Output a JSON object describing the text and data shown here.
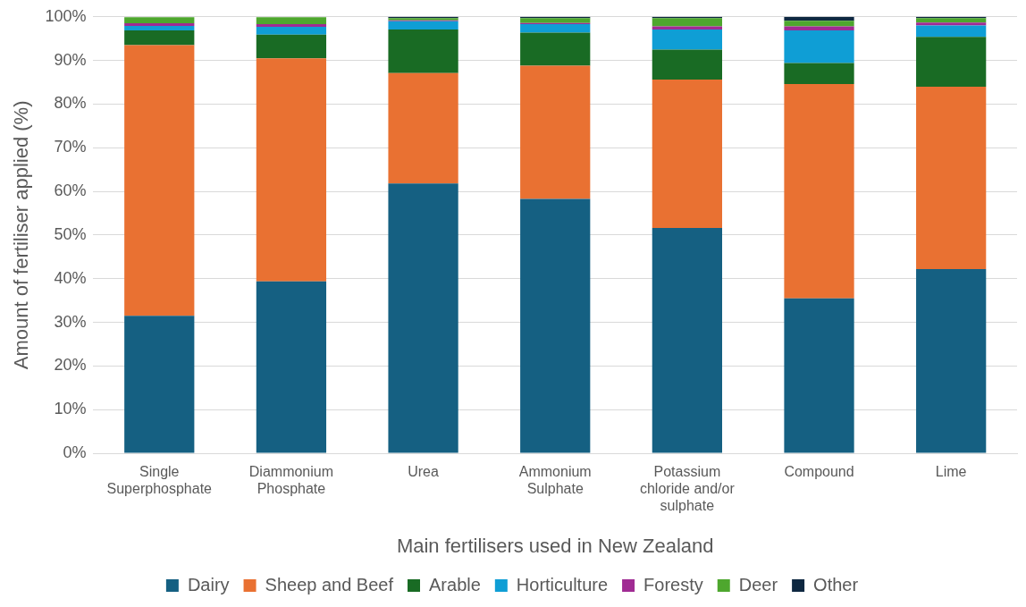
{
  "chart_data": {
    "type": "bar",
    "stacked": true,
    "xlabel": "Main fertilisers used in New Zealand",
    "ylabel": "Amount of fertiliser applied (%)",
    "categories": [
      "Single Superphosphate",
      "Diammonium Phosphate",
      "Urea",
      "Ammonium Sulphate",
      "Potassium chloride and/or sulphate",
      "Compound",
      "Lime"
    ],
    "series": [
      {
        "name": "Dairy",
        "color": "#156082",
        "values": [
          31.5,
          39.4,
          61.8,
          58.3,
          51.6,
          35.5,
          42.2
        ]
      },
      {
        "name": "Sheep and Beef",
        "color": "#e97132",
        "values": [
          62.0,
          51.1,
          25.3,
          30.5,
          34.0,
          49.1,
          41.8
        ]
      },
      {
        "name": "Arable",
        "color": "#196b24",
        "values": [
          3.4,
          5.4,
          10.0,
          7.6,
          6.9,
          4.8,
          11.4
        ]
      },
      {
        "name": "Horticulture",
        "color": "#0f9ed5",
        "values": [
          1.0,
          1.8,
          1.9,
          1.9,
          4.6,
          7.5,
          2.6
        ]
      },
      {
        "name": "Foresty",
        "color": "#a02b93",
        "values": [
          0.6,
          0.6,
          0.2,
          0.3,
          0.7,
          0.9,
          0.7
        ]
      },
      {
        "name": "Deer",
        "color": "#4ea72e",
        "values": [
          1.4,
          1.6,
          0.5,
          1.1,
          1.9,
          1.3,
          1.0
        ]
      },
      {
        "name": "Other",
        "color": "#0e2841",
        "values": [
          null,
          null,
          0.3,
          0.3,
          0.3,
          0.9,
          0.3
        ]
      }
    ],
    "ylim": [
      0,
      100
    ],
    "yticks": [
      {
        "value": 0,
        "label": "0%"
      },
      {
        "value": 10,
        "label": "10%"
      },
      {
        "value": 20,
        "label": "20%"
      },
      {
        "value": 30,
        "label": "30%"
      },
      {
        "value": 40,
        "label": "40%"
      },
      {
        "value": 50,
        "label": "50%"
      },
      {
        "value": 60,
        "label": "60%"
      },
      {
        "value": 70,
        "label": "70%"
      },
      {
        "value": 80,
        "label": "80%"
      },
      {
        "value": 90,
        "label": "90%"
      },
      {
        "value": 100,
        "label": "100%"
      }
    ],
    "grid": "y",
    "legend": "bottom"
  }
}
